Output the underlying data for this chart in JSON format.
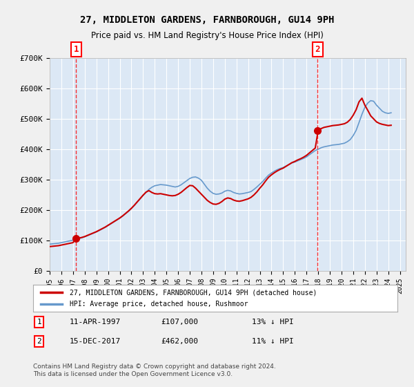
{
  "title": "27, MIDDLETON GARDENS, FARNBOROUGH, GU14 9PH",
  "subtitle": "Price paid vs. HM Land Registry's House Price Index (HPI)",
  "ylabel": "",
  "bg_color": "#e8f0f8",
  "plot_bg": "#dce8f5",
  "grid_color": "#ffffff",
  "line1_color": "#cc0000",
  "line2_color": "#6699cc",
  "purchase1_date": 1997.27,
  "purchase1_price": 107000,
  "purchase2_date": 2017.96,
  "purchase2_price": 462000,
  "ylim": [
    0,
    700000
  ],
  "xlim": [
    1995,
    2025.5
  ],
  "yticks": [
    0,
    100000,
    200000,
    300000,
    400000,
    500000,
    600000,
    700000
  ],
  "ytick_labels": [
    "£0",
    "£100K",
    "£200K",
    "£300K",
    "£400K",
    "£500K",
    "£600K",
    "£700K"
  ],
  "xticks": [
    1995,
    1996,
    1997,
    1998,
    1999,
    2000,
    2001,
    2002,
    2003,
    2004,
    2005,
    2006,
    2007,
    2008,
    2009,
    2010,
    2011,
    2012,
    2013,
    2014,
    2015,
    2016,
    2017,
    2018,
    2019,
    2020,
    2021,
    2022,
    2023,
    2024,
    2025
  ],
  "legend1_label": "27, MIDDLETON GARDENS, FARNBOROUGH, GU14 9PH (detached house)",
  "legend2_label": "HPI: Average price, detached house, Rushmoor",
  "annot1_label": "1",
  "annot1_date": "11-APR-1997",
  "annot1_price": "£107,000",
  "annot1_hpi": "13% ↓ HPI",
  "annot2_label": "2",
  "annot2_date": "15-DEC-2017",
  "annot2_price": "£462,000",
  "annot2_hpi": "11% ↓ HPI",
  "footnote": "Contains HM Land Registry data © Crown copyright and database right 2024.\nThis data is licensed under the Open Government Licence v3.0.",
  "hpi_data_x": [
    1995,
    1995.25,
    1995.5,
    1995.75,
    1996,
    1996.25,
    1996.5,
    1996.75,
    1997,
    1997.25,
    1997.5,
    1997.75,
    1998,
    1998.25,
    1998.5,
    1998.75,
    1999,
    1999.25,
    1999.5,
    1999.75,
    2000,
    2000.25,
    2000.5,
    2000.75,
    2001,
    2001.25,
    2001.5,
    2001.75,
    2002,
    2002.25,
    2002.5,
    2002.75,
    2003,
    2003.25,
    2003.5,
    2003.75,
    2004,
    2004.25,
    2004.5,
    2004.75,
    2005,
    2005.25,
    2005.5,
    2005.75,
    2006,
    2006.25,
    2006.5,
    2006.75,
    2007,
    2007.25,
    2007.5,
    2007.75,
    2008,
    2008.25,
    2008.5,
    2008.75,
    2009,
    2009.25,
    2009.5,
    2009.75,
    2010,
    2010.25,
    2010.5,
    2010.75,
    2011,
    2011.25,
    2011.5,
    2011.75,
    2012,
    2012.25,
    2012.5,
    2012.75,
    2013,
    2013.25,
    2013.5,
    2013.75,
    2014,
    2014.25,
    2014.5,
    2014.75,
    2015,
    2015.25,
    2015.5,
    2015.75,
    2016,
    2016.25,
    2016.5,
    2016.75,
    2017,
    2017.25,
    2017.5,
    2017.75,
    2018,
    2018.25,
    2018.5,
    2018.75,
    2019,
    2019.25,
    2019.5,
    2019.75,
    2020,
    2020.25,
    2020.5,
    2020.75,
    2021,
    2021.25,
    2021.5,
    2021.75,
    2022,
    2022.25,
    2022.5,
    2022.75,
    2023,
    2023.25,
    2023.5,
    2023.75,
    2024,
    2024.25
  ],
  "hpi_data_y": [
    88000,
    89000,
    90000,
    91000,
    93000,
    95000,
    97000,
    99000,
    101000,
    103000,
    106000,
    109000,
    112000,
    116000,
    120000,
    124000,
    128000,
    133000,
    138000,
    143000,
    149000,
    155000,
    161000,
    167000,
    173000,
    180000,
    188000,
    196000,
    205000,
    215000,
    226000,
    237000,
    248000,
    258000,
    268000,
    275000,
    280000,
    282000,
    284000,
    283000,
    282000,
    280000,
    278000,
    276000,
    278000,
    283000,
    290000,
    297000,
    304000,
    308000,
    309000,
    305000,
    298000,
    285000,
    272000,
    262000,
    255000,
    252000,
    253000,
    256000,
    262000,
    265000,
    263000,
    258000,
    255000,
    253000,
    254000,
    256000,
    258000,
    261000,
    268000,
    276000,
    285000,
    294000,
    305000,
    315000,
    322000,
    328000,
    333000,
    337000,
    340000,
    345000,
    350000,
    355000,
    358000,
    362000,
    366000,
    370000,
    375000,
    382000,
    389000,
    396000,
    400000,
    405000,
    408000,
    410000,
    412000,
    414000,
    415000,
    416000,
    418000,
    420000,
    425000,
    432000,
    445000,
    462000,
    488000,
    515000,
    538000,
    552000,
    560000,
    558000,
    545000,
    535000,
    525000,
    520000,
    518000,
    520000
  ],
  "price_line_x": [
    1995,
    1995.25,
    1995.5,
    1995.75,
    1996,
    1996.25,
    1996.5,
    1996.75,
    1997,
    1997.25,
    1997.5,
    1997.75,
    1998,
    1998.25,
    1998.5,
    1998.75,
    1999,
    1999.25,
    1999.5,
    1999.75,
    2000,
    2000.25,
    2000.5,
    2000.75,
    2001,
    2001.25,
    2001.5,
    2001.75,
    2002,
    2002.25,
    2002.5,
    2002.75,
    2003,
    2003.25,
    2003.5,
    2003.75,
    2004,
    2004.25,
    2004.5,
    2004.75,
    2005,
    2005.25,
    2005.5,
    2005.75,
    2006,
    2006.25,
    2006.5,
    2006.75,
    2007,
    2007.25,
    2007.5,
    2007.75,
    2008,
    2008.25,
    2008.5,
    2008.75,
    2009,
    2009.25,
    2009.5,
    2009.75,
    2010,
    2010.25,
    2010.5,
    2010.75,
    2011,
    2011.25,
    2011.5,
    2011.75,
    2012,
    2012.25,
    2012.5,
    2012.75,
    2013,
    2013.25,
    2013.5,
    2013.75,
    2014,
    2014.25,
    2014.5,
    2014.75,
    2015,
    2015.25,
    2015.5,
    2015.75,
    2016,
    2016.25,
    2016.5,
    2016.75,
    2017,
    2017.25,
    2017.5,
    2017.75,
    2018,
    2018.25,
    2018.5,
    2018.75,
    2019,
    2019.25,
    2019.5,
    2019.75,
    2020,
    2020.25,
    2020.5,
    2020.75,
    2021,
    2021.25,
    2021.5,
    2021.75,
    2022,
    2022.25,
    2022.5,
    2022.75,
    2023,
    2023.25,
    2023.5,
    2023.75,
    2024,
    2024.25
  ],
  "price_line_y": [
    80000,
    81000,
    82000,
    83000,
    85000,
    87000,
    89000,
    91000,
    93000,
    107000,
    108000,
    110000,
    113000,
    117000,
    121000,
    125000,
    129000,
    134000,
    139000,
    144000,
    150000,
    156000,
    162000,
    168000,
    174000,
    181000,
    189000,
    197000,
    206000,
    216000,
    227000,
    238000,
    249000,
    259000,
    264000,
    258000,
    254000,
    253000,
    254000,
    252000,
    250000,
    248000,
    247000,
    248000,
    252000,
    258000,
    266000,
    274000,
    281000,
    280000,
    272000,
    262000,
    252000,
    242000,
    232000,
    225000,
    220000,
    219000,
    222000,
    228000,
    236000,
    240000,
    238000,
    233000,
    230000,
    229000,
    231000,
    234000,
    237000,
    242000,
    250000,
    260000,
    272000,
    283000,
    296000,
    308000,
    316000,
    323000,
    329000,
    334000,
    338000,
    344000,
    350000,
    356000,
    360000,
    365000,
    369000,
    374000,
    380000,
    388000,
    396000,
    404000,
    462000,
    468000,
    472000,
    474000,
    476000,
    478000,
    479000,
    480000,
    482000,
    484000,
    489000,
    498000,
    512000,
    530000,
    556000,
    568000,
    545000,
    528000,
    510000,
    500000,
    490000,
    485000,
    482000,
    480000,
    478000,
    479000
  ]
}
